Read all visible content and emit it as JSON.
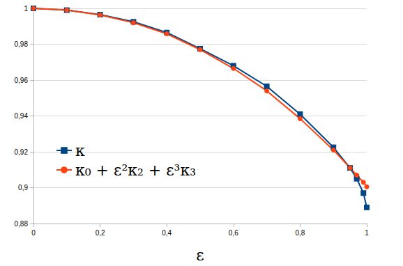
{
  "chart_data": {
    "type": "line",
    "x_label": "ε",
    "x": [
      0,
      0.1,
      0.2,
      0.3,
      0.4,
      0.5,
      0.6,
      0.7,
      0.8,
      0.9,
      0.95,
      0.97,
      0.99,
      1
    ],
    "series": [
      {
        "name": "κ",
        "color": "#004586",
        "marker": "square",
        "values": [
          1,
          0.999,
          0.9965,
          0.9925,
          0.9865,
          0.9775,
          0.968,
          0.9565,
          0.941,
          0.9225,
          0.911,
          0.905,
          0.897,
          0.889
        ]
      },
      {
        "name": "κ₀ + ε²κ₂ + ε³κ₃",
        "color": "#ff420e",
        "marker": "circle",
        "values": [
          1,
          0.999,
          0.9963,
          0.992,
          0.9858,
          0.977,
          0.9665,
          0.954,
          0.9385,
          0.921,
          0.911,
          0.907,
          0.903,
          0.9005
        ]
      }
    ],
    "xlim": [
      0,
      1
    ],
    "xticks": [
      0,
      {
        "value": 0.2,
        "label": "0,2"
      },
      {
        "value": 0.4,
        "label": "0,4"
      },
      {
        "value": 0.6,
        "label": "0,6"
      },
      {
        "value": 0.8,
        "label": "0,8"
      },
      1
    ],
    "ylim": [
      0.88,
      1
    ],
    "yticks": [
      {
        "value": 0.88,
        "label": "0,88"
      },
      {
        "value": 0.9,
        "label": "0,9"
      },
      {
        "value": 0.92,
        "label": "0,92"
      },
      {
        "value": 0.94,
        "label": "0,94"
      },
      {
        "value": 0.96,
        "label": "0,96"
      },
      {
        "value": 0.98,
        "label": "0,98"
      },
      1
    ],
    "grid": true,
    "legend": "left"
  }
}
